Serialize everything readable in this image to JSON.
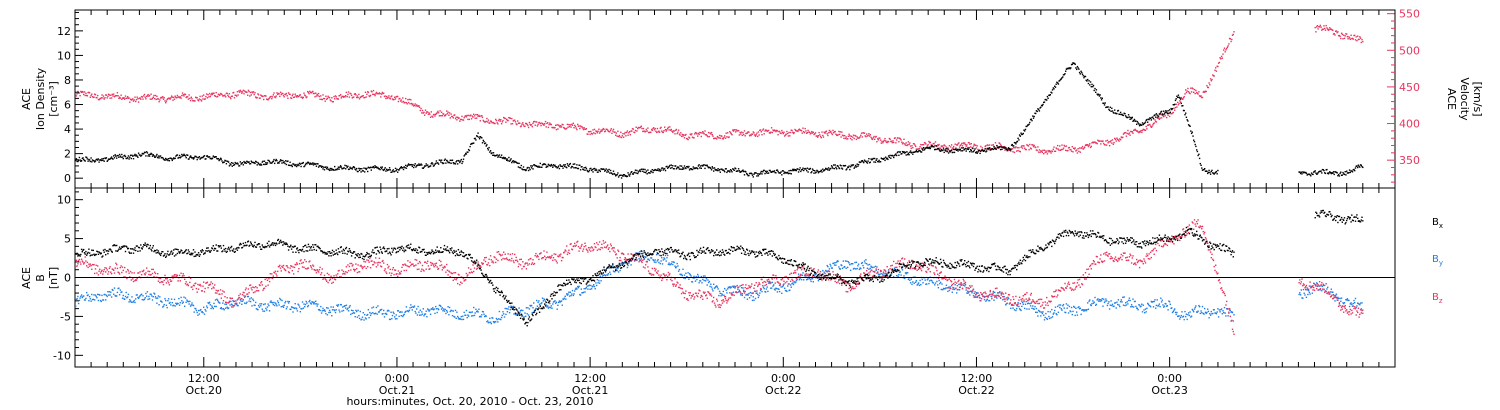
{
  "colors": {
    "black": "#000000",
    "red": "#e8355f",
    "blue": "#1f7fe6"
  },
  "chart_data": [
    {
      "type": "scatter",
      "panel": "top",
      "ylabel": "ACE\nIon Density\n[cm⁻³]",
      "ylabel_lines": [
        "ACE",
        "Ion Density",
        "[cm⁻³]"
      ],
      "y2label_lines": [
        "ACE",
        "Velocity",
        "[km/s]"
      ],
      "ylim": [
        -0.8,
        13.7
      ],
      "y_ticks": [
        0,
        2,
        4,
        6,
        8,
        10,
        12
      ],
      "y2lim": [
        312,
        555
      ],
      "y2_ticks": [
        350,
        400,
        450,
        500,
        550
      ],
      "xlim_hours": [
        0,
        82
      ],
      "series": [
        {
          "axis": "left",
          "color": "#000000",
          "x_hours": [
            0,
            2,
            4,
            6,
            8,
            10,
            12,
            14,
            16,
            18,
            20,
            22,
            24,
            25,
            26,
            28,
            30,
            32,
            34,
            36,
            38,
            40,
            42,
            44,
            46,
            48,
            50,
            52,
            53,
            54,
            56,
            58,
            59,
            60,
            62,
            64,
            66,
            68,
            68.5,
            69.5,
            70,
            71,
            72,
            73,
            74,
            75,
            76,
            77,
            78,
            79,
            80
          ],
          "values": [
            1.5,
            1.6,
            2.0,
            1.7,
            1.8,
            1.2,
            1.4,
            1.2,
            0.9,
            0.8,
            0.8,
            1.2,
            1.5,
            3.5,
            2.0,
            0.9,
            1.1,
            0.8,
            0.3,
            0.7,
            1.0,
            0.8,
            0.4,
            0.6,
            0.7,
            1.0,
            1.6,
            2.2,
            2.5,
            2.4,
            2.3,
            2.5,
            4.0,
            6.0,
            9.5,
            6.0,
            4.5,
            5.5,
            7.0,
            3.0,
            0.8,
            0.5,
            null,
            null,
            null,
            null,
            0.5,
            0.5,
            0.5,
            0.5,
            1.0
          ]
        },
        {
          "axis": "right",
          "color": "#e8355f",
          "x_hours": [
            0,
            2,
            4,
            6,
            8,
            10,
            12,
            14,
            16,
            18,
            20,
            22,
            24,
            26,
            28,
            30,
            32,
            34,
            36,
            38,
            40,
            42,
            44,
            46,
            48,
            50,
            52,
            54,
            56,
            58,
            60,
            62,
            64,
            66,
            68,
            68.5,
            69,
            70,
            72,
            74,
            76,
            77,
            78,
            79,
            80
          ],
          "values": [
            440,
            438,
            435,
            436,
            437,
            442,
            438,
            440,
            436,
            442,
            436,
            415,
            410,
            405,
            400,
            398,
            392,
            388,
            395,
            385,
            385,
            388,
            390,
            388,
            385,
            380,
            372,
            370,
            370,
            368,
            365,
            366,
            375,
            390,
            415,
            430,
            445,
            440,
            525,
            null,
            null,
            530,
            528,
            520,
            512
          ]
        }
      ]
    },
    {
      "type": "scatter",
      "panel": "bottom",
      "ylabel_lines": [
        "ACE",
        "B",
        "[nT]"
      ],
      "ylim": [
        -11.5,
        11.5
      ],
      "y_ticks": [
        -10,
        -5,
        0,
        5,
        10
      ],
      "zero_line": true,
      "xlim_hours": [
        0,
        82
      ],
      "series": [
        {
          "name": "B",
          "subscript": "x",
          "color": "#000000",
          "x_hours": [
            0,
            2,
            4,
            6,
            8,
            10,
            12,
            14,
            16,
            18,
            20,
            22,
            24,
            25,
            26,
            27,
            28,
            29,
            30,
            32,
            34,
            36,
            38,
            40,
            42,
            44,
            46,
            48,
            50,
            52,
            54,
            56,
            58,
            60,
            62,
            64,
            66,
            68,
            69,
            70,
            72,
            74,
            76,
            77,
            78,
            79,
            80
          ],
          "values": [
            3.0,
            3.5,
            4.0,
            3.2,
            3.5,
            4.0,
            4.5,
            3.8,
            3.5,
            3.0,
            3.8,
            3.5,
            3.5,
            1.5,
            -1.0,
            -3.5,
            -5.5,
            -4.0,
            -1.0,
            0.0,
            2.0,
            3.5,
            3.0,
            3.5,
            3.5,
            2.5,
            0.5,
            -0.5,
            0.0,
            2.0,
            2.0,
            1.5,
            1.0,
            4.0,
            6.0,
            5.0,
            4.5,
            5.0,
            6.0,
            5.0,
            3.0,
            null,
            null,
            8.0,
            8.0,
            7.5,
            7.5
          ]
        },
        {
          "name": "B",
          "subscript": "y",
          "color": "#1f7fe6",
          "x_hours": [
            0,
            2,
            4,
            6,
            8,
            10,
            12,
            14,
            16,
            18,
            20,
            22,
            24,
            26,
            28,
            30,
            32,
            34,
            36,
            38,
            40,
            42,
            44,
            46,
            48,
            50,
            52,
            54,
            56,
            58,
            60,
            62,
            64,
            66,
            68,
            69,
            70,
            72,
            74,
            76,
            77,
            78,
            79,
            80
          ],
          "values": [
            -3.0,
            -2.0,
            -2.5,
            -3.0,
            -4.0,
            -3.0,
            -3.5,
            -3.5,
            -4.0,
            -4.5,
            -4.5,
            -4.0,
            -4.5,
            -5.0,
            -4.0,
            -3.0,
            -1.0,
            2.0,
            3.0,
            0.5,
            -1.5,
            -2.0,
            -1.0,
            0.5,
            2.0,
            1.0,
            0.0,
            -1.0,
            -2.0,
            -3.0,
            -4.5,
            -4.0,
            -3.0,
            -3.5,
            -3.5,
            -5.0,
            -4.0,
            -5.0,
            null,
            -2.0,
            -1.0,
            -2.0,
            -3.0,
            -4.0
          ]
        },
        {
          "name": "B",
          "subscript": "z",
          "color": "#e8355f",
          "x_hours": [
            0,
            2,
            4,
            6,
            8,
            10,
            12,
            14,
            16,
            18,
            20,
            22,
            24,
            26,
            28,
            30,
            32,
            34,
            36,
            38,
            40,
            42,
            44,
            46,
            48,
            50,
            52,
            54,
            56,
            58,
            60,
            62,
            64,
            66,
            68,
            69,
            70,
            72,
            74,
            76,
            77,
            78,
            79,
            80
          ],
          "values": [
            2.0,
            1.0,
            0.5,
            0.0,
            -1.0,
            -3.0,
            0.0,
            2.0,
            0.0,
            2.0,
            1.0,
            2.0,
            0.0,
            3.0,
            2.0,
            3.0,
            4.5,
            3.0,
            1.0,
            -2.0,
            -3.0,
            -1.0,
            0.0,
            1.0,
            -1.0,
            1.0,
            2.0,
            0.0,
            -2.0,
            -2.5,
            -3.0,
            -1.0,
            3.0,
            2.0,
            5.0,
            6.0,
            7.0,
            -7.0,
            null,
            0.0,
            -1.0,
            -2.0,
            -4.0,
            -5.0
          ]
        }
      ]
    }
  ],
  "x_axis": {
    "title": "hours:minutes, Oct. 20, 2010 - Oct. 23, 2010",
    "ticks": [
      {
        "hour": 8,
        "time": "12:00",
        "date": "Oct.20"
      },
      {
        "hour": 20,
        "time": "0:00",
        "date": "Oct.21"
      },
      {
        "hour": 32,
        "time": "12:00",
        "date": "Oct.21"
      },
      {
        "hour": 44,
        "time": "0:00",
        "date": "Oct.22"
      },
      {
        "hour": 56,
        "time": "12:00",
        "date": "Oct.22"
      },
      {
        "hour": 68,
        "time": "0:00",
        "date": "Oct.23"
      }
    ]
  }
}
